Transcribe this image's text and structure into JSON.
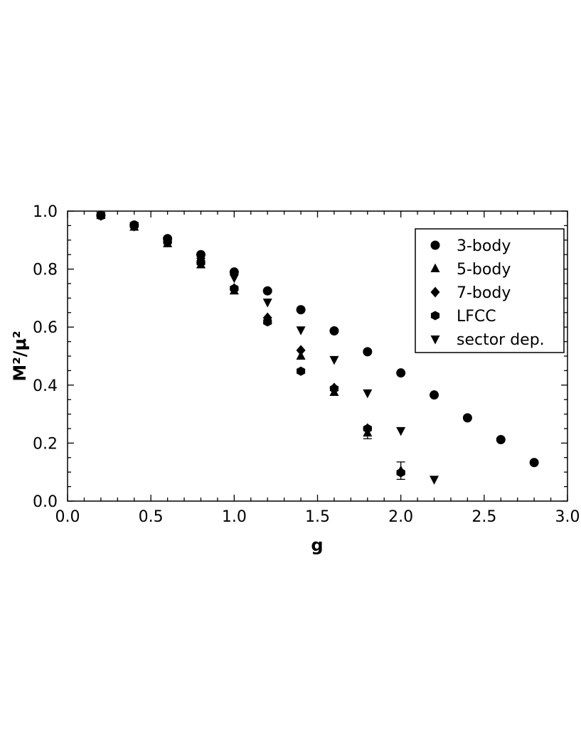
{
  "chart_data": {
    "type": "scatter",
    "xlabel": "g",
    "ylabel": "M²/μ²",
    "xlim": [
      0.0,
      3.0
    ],
    "ylim": [
      0.0,
      1.0
    ],
    "x_ticks": [
      "0.0",
      "0.5",
      "1.0",
      "1.5",
      "2.0",
      "2.5",
      "3.0"
    ],
    "y_ticks": [
      "0.0",
      "0.2",
      "0.4",
      "0.6",
      "0.8",
      "1.0"
    ],
    "legend_position": "top-right",
    "grid": false,
    "series": [
      {
        "name": "3-body",
        "marker": "circle",
        "x": [
          0.2,
          0.4,
          0.6,
          0.8,
          1.0,
          1.2,
          1.4,
          1.6,
          1.8,
          2.0,
          2.2,
          2.4,
          2.6,
          2.8
        ],
        "y": [
          0.985,
          0.952,
          0.905,
          0.85,
          0.79,
          0.725,
          0.66,
          0.587,
          0.515,
          0.442,
          0.366,
          0.287,
          0.212,
          0.133
        ]
      },
      {
        "name": "5-body",
        "marker": "triangle-up",
        "x": [
          0.2,
          0.4,
          0.6,
          0.8,
          1.0,
          1.2,
          1.4,
          1.6,
          1.8,
          2.0
        ],
        "y": [
          0.985,
          0.945,
          0.888,
          0.815,
          0.725,
          0.625,
          0.5,
          0.375,
          0.235,
          0.105
        ],
        "err": [
          0,
          0,
          0,
          0,
          0,
          0,
          0,
          0,
          0.02,
          0.03
        ]
      },
      {
        "name": "7-body",
        "marker": "diamond",
        "x": [
          0.2,
          0.4,
          0.6,
          0.8,
          1.0,
          1.2,
          1.4,
          1.6,
          1.8,
          2.0
        ],
        "y": [
          0.985,
          0.948,
          0.893,
          0.822,
          0.733,
          0.632,
          0.52,
          0.39,
          0.25,
          0.1
        ]
      },
      {
        "name": "LFCC",
        "marker": "hexagon",
        "x": [
          0.2,
          0.4,
          0.6,
          0.8,
          1.0,
          1.2,
          1.4,
          1.6,
          1.8,
          2.0
        ],
        "y": [
          0.985,
          0.95,
          0.895,
          0.823,
          0.733,
          0.618,
          0.448,
          0.388,
          0.25,
          0.098
        ]
      },
      {
        "name": "sector dep.",
        "marker": "triangle-down",
        "x": [
          0.2,
          0.4,
          0.6,
          0.8,
          1.0,
          1.2,
          1.4,
          1.6,
          1.8,
          2.0,
          2.2
        ],
        "y": [
          0.985,
          0.95,
          0.897,
          0.827,
          0.77,
          0.686,
          0.59,
          0.488,
          0.373,
          0.243,
          0.075
        ]
      }
    ]
  },
  "colors": {
    "marker": "#000000",
    "axis": "#000000",
    "background": "#ffffff"
  }
}
